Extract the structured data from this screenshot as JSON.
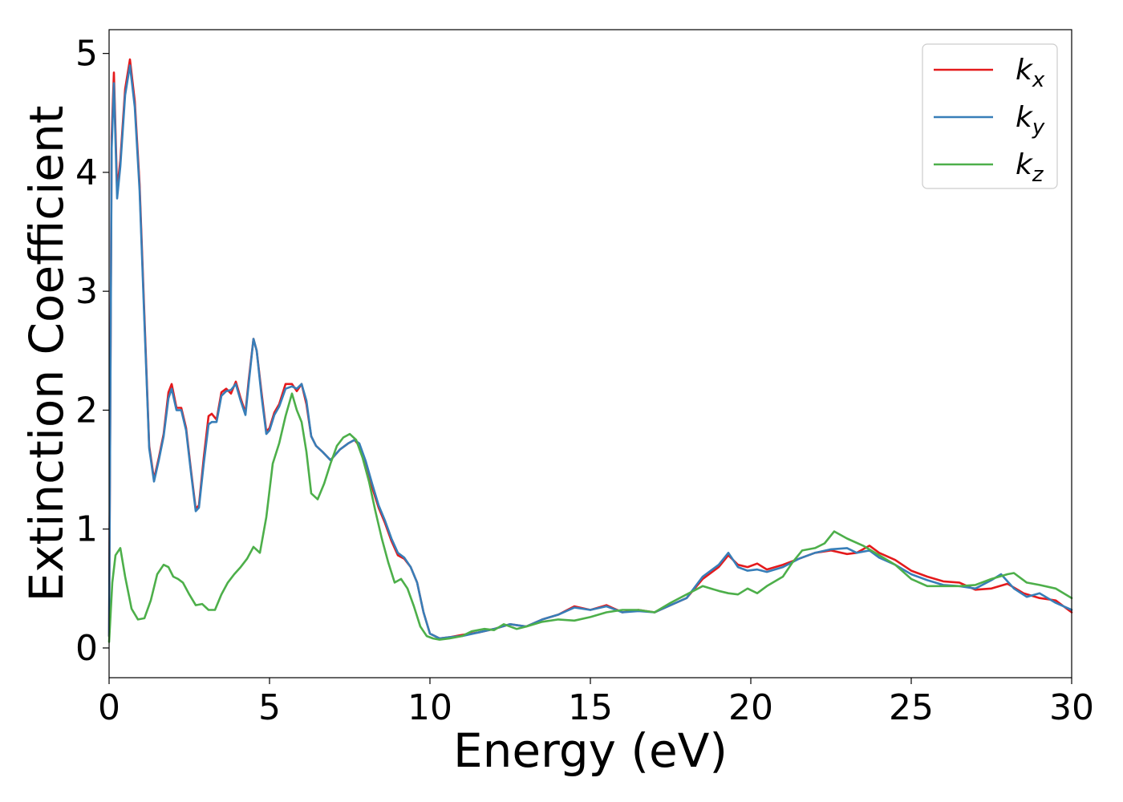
{
  "chart_data": {
    "type": "line",
    "title": "",
    "xlabel": "Energy (eV)",
    "ylabel": "Extinction Coefficient",
    "xlim": [
      0,
      30
    ],
    "ylim": [
      -0.25,
      5.2
    ],
    "xticks": [
      0,
      5,
      10,
      15,
      20,
      25,
      30
    ],
    "yticks": [
      0,
      1,
      2,
      3,
      4,
      5
    ],
    "grid": false,
    "legend_position": "top-right",
    "series": [
      {
        "name": "k",
        "sub": "x",
        "color": "#e41a1c",
        "x": [
          0,
          0.08,
          0.15,
          0.25,
          0.35,
          0.5,
          0.65,
          0.8,
          0.95,
          1.1,
          1.25,
          1.4,
          1.55,
          1.7,
          1.85,
          1.95,
          2.1,
          2.25,
          2.4,
          2.55,
          2.7,
          2.8,
          2.95,
          3.1,
          3.2,
          3.35,
          3.5,
          3.65,
          3.8,
          3.95,
          4.1,
          4.25,
          4.35,
          4.5,
          4.6,
          4.75,
          4.9,
          5.0,
          5.15,
          5.3,
          5.5,
          5.7,
          5.85,
          6.0,
          6.15,
          6.3,
          6.45,
          6.65,
          6.9,
          7.2,
          7.45,
          7.65,
          7.8,
          8.0,
          8.2,
          8.4,
          8.6,
          8.8,
          9.0,
          9.2,
          9.4,
          9.6,
          9.8,
          10.0,
          10.3,
          10.6,
          11.0,
          11.5,
          12.0,
          12.5,
          13.0,
          13.5,
          14.0,
          14.5,
          15.0,
          15.5,
          16.0,
          16.5,
          17.0,
          17.5,
          18.0,
          18.5,
          19.0,
          19.3,
          19.6,
          19.9,
          20.2,
          20.5,
          21.0,
          21.5,
          22.0,
          22.5,
          23.0,
          23.3,
          23.7,
          24.0,
          24.5,
          25.0,
          25.5,
          26.0,
          26.5,
          27.0,
          27.5,
          28.0,
          28.5,
          29.0,
          29.5,
          30.0
        ],
        "y": [
          0.1,
          4.3,
          4.84,
          3.85,
          4.1,
          4.7,
          4.95,
          4.6,
          3.9,
          2.8,
          1.7,
          1.42,
          1.6,
          1.8,
          2.15,
          2.22,
          2.02,
          2.02,
          1.85,
          1.5,
          1.17,
          1.2,
          1.6,
          1.95,
          1.97,
          1.92,
          2.15,
          2.18,
          2.14,
          2.24,
          2.1,
          1.98,
          2.25,
          2.6,
          2.5,
          2.15,
          1.82,
          1.85,
          1.98,
          2.05,
          2.22,
          2.22,
          2.16,
          2.22,
          2.05,
          1.78,
          1.7,
          1.65,
          1.58,
          1.67,
          1.72,
          1.75,
          1.7,
          1.55,
          1.35,
          1.18,
          1.05,
          0.9,
          0.78,
          0.75,
          0.68,
          0.55,
          0.3,
          0.12,
          0.08,
          0.09,
          0.11,
          0.13,
          0.16,
          0.2,
          0.18,
          0.24,
          0.28,
          0.35,
          0.32,
          0.36,
          0.3,
          0.32,
          0.3,
          0.36,
          0.42,
          0.58,
          0.68,
          0.78,
          0.7,
          0.68,
          0.71,
          0.66,
          0.7,
          0.75,
          0.8,
          0.82,
          0.79,
          0.8,
          0.86,
          0.8,
          0.74,
          0.65,
          0.6,
          0.56,
          0.55,
          0.49,
          0.5,
          0.54,
          0.46,
          0.42,
          0.4,
          0.3
        ]
      },
      {
        "name": "k",
        "sub": "y",
        "color": "#377eb8",
        "x": [
          0,
          0.08,
          0.15,
          0.25,
          0.35,
          0.5,
          0.65,
          0.8,
          0.95,
          1.1,
          1.25,
          1.4,
          1.55,
          1.7,
          1.85,
          1.95,
          2.1,
          2.25,
          2.4,
          2.55,
          2.7,
          2.8,
          2.95,
          3.1,
          3.2,
          3.35,
          3.5,
          3.65,
          3.8,
          3.95,
          4.1,
          4.25,
          4.35,
          4.5,
          4.6,
          4.75,
          4.9,
          5.0,
          5.15,
          5.3,
          5.5,
          5.7,
          5.85,
          6.0,
          6.15,
          6.3,
          6.45,
          6.65,
          6.9,
          7.2,
          7.45,
          7.65,
          7.8,
          8.0,
          8.2,
          8.4,
          8.6,
          8.8,
          9.0,
          9.2,
          9.4,
          9.6,
          9.8,
          10.0,
          10.3,
          10.6,
          11.0,
          11.5,
          12.0,
          12.5,
          13.0,
          13.5,
          14.0,
          14.5,
          15.0,
          15.5,
          16.0,
          16.5,
          17.0,
          17.5,
          18.0,
          18.5,
          19.0,
          19.3,
          19.6,
          19.9,
          20.2,
          20.5,
          21.0,
          21.5,
          22.0,
          22.5,
          23.0,
          23.3,
          23.7,
          24.0,
          24.5,
          25.0,
          25.5,
          26.0,
          26.5,
          27.0,
          27.5,
          27.8,
          28.2,
          28.6,
          29.0,
          29.5,
          30.0
        ],
        "y": [
          0.1,
          4.2,
          4.75,
          3.78,
          4.05,
          4.65,
          4.9,
          4.55,
          3.85,
          2.75,
          1.68,
          1.4,
          1.58,
          1.78,
          2.1,
          2.18,
          2.0,
          2.0,
          1.83,
          1.48,
          1.15,
          1.18,
          1.55,
          1.88,
          1.9,
          1.9,
          2.12,
          2.16,
          2.17,
          2.22,
          2.08,
          1.96,
          2.22,
          2.6,
          2.5,
          2.12,
          1.8,
          1.83,
          1.96,
          2.03,
          2.18,
          2.2,
          2.18,
          2.22,
          2.08,
          1.78,
          1.7,
          1.65,
          1.58,
          1.67,
          1.72,
          1.75,
          1.72,
          1.57,
          1.38,
          1.2,
          1.07,
          0.92,
          0.8,
          0.76,
          0.68,
          0.55,
          0.3,
          0.12,
          0.08,
          0.09,
          0.1,
          0.13,
          0.16,
          0.2,
          0.18,
          0.24,
          0.28,
          0.34,
          0.32,
          0.35,
          0.3,
          0.31,
          0.3,
          0.36,
          0.42,
          0.6,
          0.7,
          0.8,
          0.68,
          0.65,
          0.66,
          0.64,
          0.68,
          0.75,
          0.8,
          0.83,
          0.84,
          0.8,
          0.82,
          0.76,
          0.7,
          0.62,
          0.57,
          0.53,
          0.52,
          0.5,
          0.57,
          0.62,
          0.5,
          0.43,
          0.46,
          0.38,
          0.32
        ]
      },
      {
        "name": "k",
        "sub": "z",
        "color": "#4daf4a",
        "x": [
          0,
          0.1,
          0.2,
          0.35,
          0.5,
          0.7,
          0.9,
          1.1,
          1.3,
          1.5,
          1.7,
          1.85,
          2.0,
          2.15,
          2.3,
          2.5,
          2.7,
          2.9,
          3.1,
          3.3,
          3.5,
          3.7,
          3.9,
          4.1,
          4.3,
          4.5,
          4.7,
          4.9,
          5.1,
          5.3,
          5.5,
          5.7,
          5.85,
          6.0,
          6.15,
          6.3,
          6.5,
          6.7,
          6.9,
          7.1,
          7.3,
          7.5,
          7.7,
          7.9,
          8.1,
          8.3,
          8.5,
          8.7,
          8.9,
          9.1,
          9.3,
          9.5,
          9.7,
          9.9,
          10.1,
          10.3,
          10.6,
          11.0,
          11.3,
          11.7,
          12.0,
          12.3,
          12.7,
          13.0,
          13.5,
          14.0,
          14.5,
          15.0,
          15.5,
          16.0,
          16.5,
          17.0,
          17.5,
          18.0,
          18.5,
          19.0,
          19.3,
          19.6,
          19.9,
          20.2,
          20.5,
          21.0,
          21.3,
          21.6,
          22.0,
          22.3,
          22.6,
          23.0,
          23.5,
          24.0,
          24.5,
          25.0,
          25.5,
          26.0,
          26.5,
          27.0,
          27.5,
          28.0,
          28.2,
          28.6,
          29.0,
          29.5,
          30.0
        ],
        "y": [
          0.05,
          0.55,
          0.78,
          0.84,
          0.6,
          0.33,
          0.24,
          0.25,
          0.4,
          0.62,
          0.7,
          0.68,
          0.6,
          0.58,
          0.55,
          0.45,
          0.36,
          0.37,
          0.32,
          0.32,
          0.45,
          0.55,
          0.62,
          0.68,
          0.75,
          0.85,
          0.8,
          1.1,
          1.55,
          1.72,
          1.95,
          2.14,
          2.0,
          1.9,
          1.65,
          1.3,
          1.25,
          1.38,
          1.55,
          1.7,
          1.77,
          1.8,
          1.75,
          1.6,
          1.4,
          1.15,
          0.92,
          0.72,
          0.55,
          0.58,
          0.5,
          0.35,
          0.18,
          0.1,
          0.08,
          0.07,
          0.08,
          0.1,
          0.14,
          0.16,
          0.15,
          0.2,
          0.16,
          0.18,
          0.22,
          0.24,
          0.23,
          0.26,
          0.3,
          0.32,
          0.32,
          0.3,
          0.38,
          0.45,
          0.52,
          0.48,
          0.46,
          0.45,
          0.5,
          0.46,
          0.52,
          0.6,
          0.72,
          0.82,
          0.84,
          0.88,
          0.98,
          0.92,
          0.86,
          0.78,
          0.7,
          0.58,
          0.52,
          0.52,
          0.52,
          0.53,
          0.58,
          0.62,
          0.63,
          0.55,
          0.53,
          0.5,
          0.42
        ]
      }
    ]
  }
}
